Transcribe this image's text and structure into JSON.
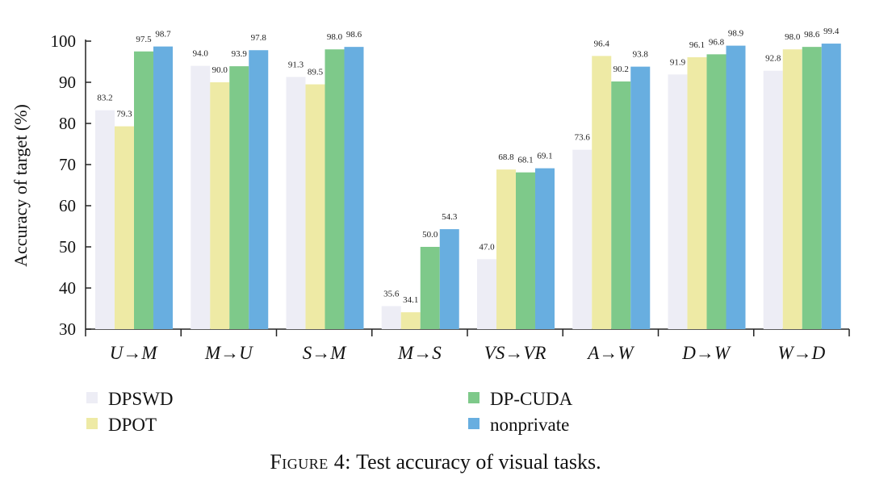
{
  "chart_data": {
    "type": "bar",
    "ylabel": "Accuracy of target (%)",
    "xlabel": "",
    "ylim": [
      30,
      100
    ],
    "yticks": [
      30,
      40,
      50,
      60,
      70,
      80,
      90,
      100
    ],
    "categories": [
      "U→M",
      "M→U",
      "S→M",
      "M→S",
      "VS→VR",
      "A→W",
      "D→W",
      "W→D"
    ],
    "series": [
      {
        "name": "DPSWD",
        "color": "#ededf5",
        "values": [
          83.2,
          94.0,
          91.3,
          35.6,
          47.0,
          73.6,
          91.9,
          92.8
        ]
      },
      {
        "name": "DPOT",
        "color": "#eeeaa5",
        "values": [
          79.3,
          90.0,
          89.5,
          34.1,
          68.8,
          96.4,
          96.1,
          98.0
        ]
      },
      {
        "name": "DP-CUDA",
        "color": "#7ec98a",
        "values": [
          97.5,
          93.9,
          98.0,
          50.0,
          68.1,
          90.2,
          96.8,
          98.6
        ]
      },
      {
        "name": "nonprivate",
        "color": "#68aee0",
        "values": [
          98.7,
          97.8,
          98.6,
          54.3,
          69.1,
          93.8,
          98.9,
          99.4
        ]
      }
    ],
    "value_labels": [
      [
        "83.2",
        "94.0",
        "91.3",
        "35.6",
        "47.0",
        "73.6",
        "91.9",
        "92.8"
      ],
      [
        "79.3",
        "90.0",
        "89.5",
        "34.1",
        "68.8",
        "96.4",
        "96.1",
        "98.0"
      ],
      [
        "97.5",
        "93.9",
        "98.0",
        "50.0",
        "68.1",
        "90.2",
        "96.8",
        "98.6"
      ],
      [
        "98.7",
        "97.8",
        "98.6",
        "54.3",
        "69.1",
        "93.8",
        "98.9",
        "99.4"
      ]
    ],
    "legend_placement": "bottom",
    "grid": false
  },
  "caption": {
    "figure_label": "Figure 4:",
    "text": "Test accuracy of visual tasks."
  }
}
